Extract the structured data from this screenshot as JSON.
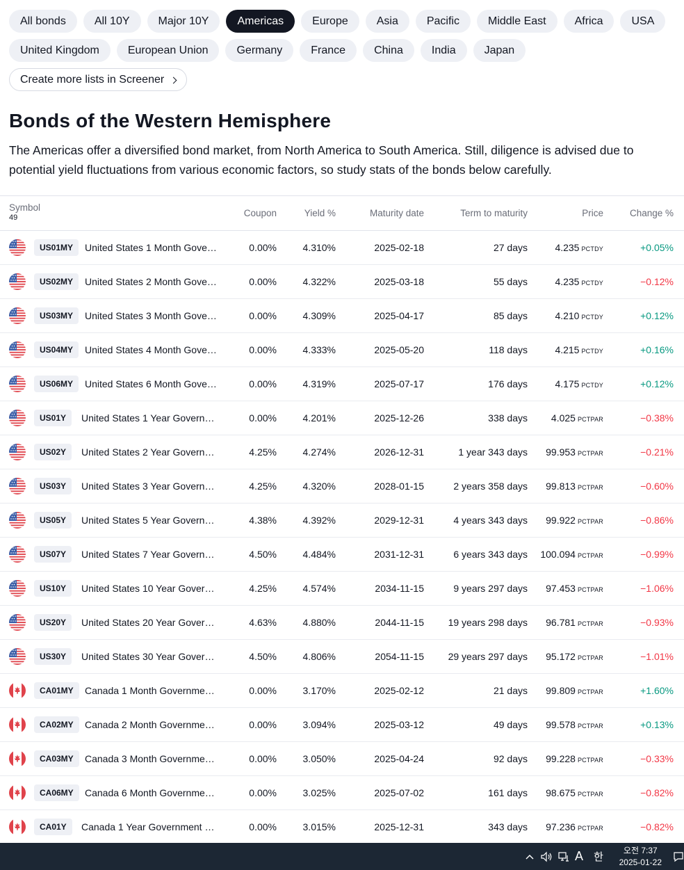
{
  "tabs": {
    "row1": [
      "All bonds",
      "All 10Y",
      "Major 10Y",
      "Americas",
      "Europe",
      "Asia",
      "Pacific",
      "Middle East",
      "Africa",
      "USA"
    ],
    "row2": [
      "United Kingdom",
      "European Union",
      "Germany",
      "France",
      "China",
      "India",
      "Japan"
    ],
    "active": "Americas",
    "screener_label": "Create more lists in Screener"
  },
  "page": {
    "title": "Bonds of the Western Hemisphere",
    "description": "The Americas offer a diversified bond market, from North America to South America. Still, diligence is advised due to potential yield fluctuations from various economic factors, so study stats of the bonds below carefully."
  },
  "table": {
    "headers": {
      "symbol": "Symbol",
      "count": "49",
      "coupon": "Coupon",
      "yield": "Yield %",
      "maturity": "Maturity date",
      "term": "Term to maturity",
      "price": "Price",
      "change": "Change %"
    },
    "rows": [
      {
        "flag": "us-flag-icon",
        "ticker": "US01MY",
        "name": "United States 1 Month Gove…",
        "coupon": "0.00%",
        "yield": "4.310%",
        "maturity": "2025-02-18",
        "term": "27 days",
        "price": "4.235",
        "unit": "PCTDY",
        "change": "+0.05%"
      },
      {
        "flag": "us-flag-icon",
        "ticker": "US02MY",
        "name": "United States 2 Month Gove…",
        "coupon": "0.00%",
        "yield": "4.322%",
        "maturity": "2025-03-18",
        "term": "55 days",
        "price": "4.235",
        "unit": "PCTDY",
        "change": "−0.12%"
      },
      {
        "flag": "us-flag-icon",
        "ticker": "US03MY",
        "name": "United States 3 Month Gove…",
        "coupon": "0.00%",
        "yield": "4.309%",
        "maturity": "2025-04-17",
        "term": "85 days",
        "price": "4.210",
        "unit": "PCTDY",
        "change": "+0.12%"
      },
      {
        "flag": "us-flag-icon",
        "ticker": "US04MY",
        "name": "United States 4 Month Gove…",
        "coupon": "0.00%",
        "yield": "4.333%",
        "maturity": "2025-05-20",
        "term": "118 days",
        "price": "4.215",
        "unit": "PCTDY",
        "change": "+0.16%"
      },
      {
        "flag": "us-flag-icon",
        "ticker": "US06MY",
        "name": "United States 6 Month Gove…",
        "coupon": "0.00%",
        "yield": "4.319%",
        "maturity": "2025-07-17",
        "term": "176 days",
        "price": "4.175",
        "unit": "PCTDY",
        "change": "+0.12%"
      },
      {
        "flag": "us-flag-icon",
        "ticker": "US01Y",
        "name": "United States 1 Year Govern…",
        "coupon": "0.00%",
        "yield": "4.201%",
        "maturity": "2025-12-26",
        "term": "338 days",
        "price": "4.025",
        "unit": "PCTPAR",
        "change": "−0.38%"
      },
      {
        "flag": "us-flag-icon",
        "ticker": "US02Y",
        "name": "United States 2 Year Govern…",
        "coupon": "4.25%",
        "yield": "4.274%",
        "maturity": "2026-12-31",
        "term": "1 year 343 days",
        "price": "99.953",
        "unit": "PCTPAR",
        "change": "−0.21%"
      },
      {
        "flag": "us-flag-icon",
        "ticker": "US03Y",
        "name": "United States 3 Year Govern…",
        "coupon": "4.25%",
        "yield": "4.320%",
        "maturity": "2028-01-15",
        "term": "2 years 358 days",
        "price": "99.813",
        "unit": "PCTPAR",
        "change": "−0.60%"
      },
      {
        "flag": "us-flag-icon",
        "ticker": "US05Y",
        "name": "United States 5 Year Govern…",
        "coupon": "4.38%",
        "yield": "4.392%",
        "maturity": "2029-12-31",
        "term": "4 years 343 days",
        "price": "99.922",
        "unit": "PCTPAR",
        "change": "−0.86%"
      },
      {
        "flag": "us-flag-icon",
        "ticker": "US07Y",
        "name": "United States 7 Year Govern…",
        "coupon": "4.50%",
        "yield": "4.484%",
        "maturity": "2031-12-31",
        "term": "6 years 343 days",
        "price": "100.094",
        "unit": "PCTPAR",
        "change": "−0.99%"
      },
      {
        "flag": "us-flag-icon",
        "ticker": "US10Y",
        "name": "United States 10 Year Gover…",
        "coupon": "4.25%",
        "yield": "4.574%",
        "maturity": "2034-11-15",
        "term": "9 years 297 days",
        "price": "97.453",
        "unit": "PCTPAR",
        "change": "−1.06%"
      },
      {
        "flag": "us-flag-icon",
        "ticker": "US20Y",
        "name": "United States 20 Year Gover…",
        "coupon": "4.63%",
        "yield": "4.880%",
        "maturity": "2044-11-15",
        "term": "19 years 298 days",
        "price": "96.781",
        "unit": "PCTPAR",
        "change": "−0.93%"
      },
      {
        "flag": "us-flag-icon",
        "ticker": "US30Y",
        "name": "United States 30 Year Gover…",
        "coupon": "4.50%",
        "yield": "4.806%",
        "maturity": "2054-11-15",
        "term": "29 years 297 days",
        "price": "95.172",
        "unit": "PCTPAR",
        "change": "−1.01%"
      },
      {
        "flag": "ca-flag-icon",
        "ticker": "CA01MY",
        "name": "Canada 1 Month Governmen…",
        "coupon": "0.00%",
        "yield": "3.170%",
        "maturity": "2025-02-12",
        "term": "21 days",
        "price": "99.809",
        "unit": "PCTPAR",
        "change": "+1.60%"
      },
      {
        "flag": "ca-flag-icon",
        "ticker": "CA02MY",
        "name": "Canada 2 Month Governmen…",
        "coupon": "0.00%",
        "yield": "3.094%",
        "maturity": "2025-03-12",
        "term": "49 days",
        "price": "99.578",
        "unit": "PCTPAR",
        "change": "+0.13%"
      },
      {
        "flag": "ca-flag-icon",
        "ticker": "CA03MY",
        "name": "Canada 3 Month Governmen…",
        "coupon": "0.00%",
        "yield": "3.050%",
        "maturity": "2025-04-24",
        "term": "92 days",
        "price": "99.228",
        "unit": "PCTPAR",
        "change": "−0.33%"
      },
      {
        "flag": "ca-flag-icon",
        "ticker": "CA06MY",
        "name": "Canada 6 Month Governmen…",
        "coupon": "0.00%",
        "yield": "3.025%",
        "maturity": "2025-07-02",
        "term": "161 days",
        "price": "98.675",
        "unit": "PCTPAR",
        "change": "−0.82%"
      },
      {
        "flag": "ca-flag-icon",
        "ticker": "CA01Y",
        "name": "Canada 1 Year Government …",
        "coupon": "0.00%",
        "yield": "3.015%",
        "maturity": "2025-12-31",
        "term": "343 days",
        "price": "97.236",
        "unit": "PCTPAR",
        "change": "−0.82%"
      }
    ]
  },
  "colors": {
    "positive": "#089981",
    "negative": "#f23645",
    "active_chip": "#131722",
    "taskbar": "#1c2734"
  },
  "taskbar": {
    "icons": [
      "chevron-up-icon",
      "speaker-icon",
      "network-icon",
      "font-icon",
      "ime-icon",
      "notification-icon"
    ],
    "font_label": "A",
    "ime_label": "한",
    "time": "오전 7:37",
    "date": "2025-01-22"
  }
}
